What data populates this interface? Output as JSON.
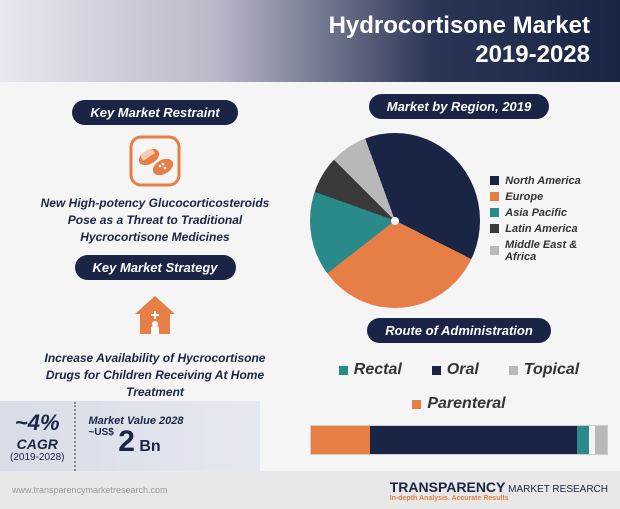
{
  "header": {
    "title_l1": "Hydrocortisone Market",
    "title_l2": "2019-2028"
  },
  "colors": {
    "navy": "#1a2545",
    "orange": "#e67e45",
    "teal": "#2a8a8a",
    "darkteal": "#226b6b",
    "grey": "#a8a8a8",
    "lightgrey": "#cfcfcf",
    "bg": "#f5f5f5"
  },
  "left": {
    "restraint_label": "Key Market Restraint",
    "restraint_text": "New High-potency Glucocorticosteroids Pose as a Threat to Traditional Hycrocortisone Medicines",
    "strategy_label": "Key Market Strategy",
    "strategy_text": "Increase Availability of Hycrocortisone Drugs for Children Receiving At Home Treatment"
  },
  "stats": {
    "cagr_value": "~4%",
    "cagr_label": "CAGR",
    "cagr_years": "(2019-2028)",
    "mv_label": "Market Value 2028",
    "mv_prefix": "~US$",
    "mv_value": "2",
    "mv_suffix": "Bn"
  },
  "region": {
    "title": "Market by Region, 2019",
    "slices": [
      {
        "label": "North America",
        "value": 38,
        "color": "#1a2545"
      },
      {
        "label": "Europe",
        "value": 32,
        "color": "#e67e45"
      },
      {
        "label": "Asia Pacific",
        "value": 16,
        "color": "#2a8a8a"
      },
      {
        "label": "Latin America",
        "value": 7,
        "color": "#3a3a3a"
      },
      {
        "label": "Middle East & Africa",
        "value": 7,
        "color": "#b8b8b8"
      }
    ]
  },
  "roa": {
    "title": "Route of Administration",
    "legend": [
      {
        "label": "Rectal",
        "color": "#2a8a8a"
      },
      {
        "label": "Oral",
        "color": "#1a2545"
      },
      {
        "label": "Topical",
        "color": "#b8b8b8"
      },
      {
        "label": "Parenteral",
        "color": "#e67e45"
      }
    ],
    "bar": [
      {
        "label": "Parenteral",
        "value": 20,
        "color": "#e67e45"
      },
      {
        "label": "Oral",
        "value": 70,
        "color": "#1a2545"
      },
      {
        "label": "Rectal",
        "value": 4,
        "color": "#2a8a8a"
      },
      {
        "label": "Space",
        "value": 2,
        "color": "#f5f5f5"
      },
      {
        "label": "Topical",
        "value": 4,
        "color": "#b8b8b8"
      }
    ]
  },
  "footer": {
    "url": "www.transparencymarketresearch.com",
    "logo_main": "TRANSPARENCY",
    "logo_sub": "MARKET RESEARCH",
    "tagline": "In-depth Analysis. Accurate Results"
  }
}
